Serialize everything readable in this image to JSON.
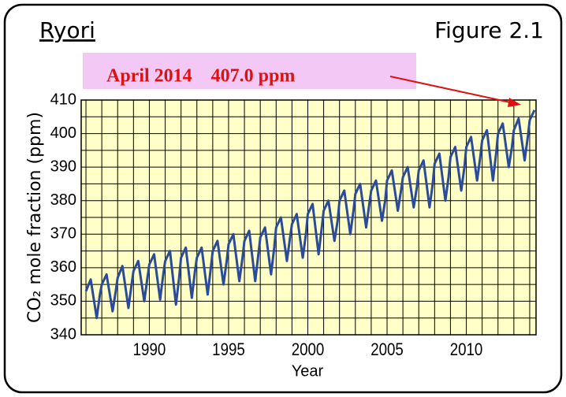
{
  "chart_data": {
    "type": "line",
    "title": "Ryori",
    "figure_label": "Figure 2.1",
    "annotation": "April 2014    407.0 ppm",
    "x_label": "Year",
    "y_label": "CO₂ mole fraction (ppm)",
    "xlim": [
      1985.7,
      2014.4
    ],
    "ylim": [
      340,
      410
    ],
    "xticks": [
      1990,
      1995,
      2000,
      2005,
      2010
    ],
    "yticks": [
      340,
      350,
      360,
      370,
      380,
      390,
      400,
      410
    ],
    "minor_xticks": [
      1986,
      1987,
      1988,
      1989,
      1991,
      1992,
      1993,
      1994,
      1996,
      1997,
      1998,
      1999,
      2001,
      2002,
      2003,
      2004,
      2006,
      2007,
      2008,
      2009,
      2011,
      2012,
      2013,
      2014
    ],
    "minor_yticks": [
      345,
      355,
      365,
      375,
      385,
      395,
      405
    ],
    "grid": true,
    "series": [
      {
        "name": "Ryori",
        "color": "#2a4a9a",
        "x": [
          1986.0,
          1986.3,
          1986.68,
          1986.88,
          1987.0,
          1987.3,
          1987.68,
          1987.88,
          1988.0,
          1988.3,
          1988.68,
          1988.88,
          1989.0,
          1989.3,
          1989.68,
          1989.88,
          1990.0,
          1990.3,
          1990.68,
          1990.88,
          1991.0,
          1991.3,
          1991.68,
          1991.88,
          1992.0,
          1992.3,
          1992.68,
          1992.88,
          1993.0,
          1993.3,
          1993.68,
          1993.88,
          1994.0,
          1994.3,
          1994.68,
          1994.88,
          1995.0,
          1995.3,
          1995.68,
          1995.88,
          1996.0,
          1996.3,
          1996.68,
          1996.88,
          1997.0,
          1997.3,
          1997.68,
          1997.88,
          1998.0,
          1998.3,
          1998.68,
          1998.88,
          1999.0,
          1999.3,
          1999.68,
          1999.88,
          2000.0,
          2000.3,
          2000.68,
          2000.88,
          2001.0,
          2001.3,
          2001.68,
          2001.88,
          2002.0,
          2002.3,
          2002.68,
          2002.88,
          2003.0,
          2003.3,
          2003.68,
          2003.88,
          2004.0,
          2004.3,
          2004.68,
          2004.88,
          2005.0,
          2005.3,
          2005.68,
          2005.88,
          2006.0,
          2006.3,
          2006.68,
          2006.88,
          2007.0,
          2007.3,
          2007.68,
          2007.88,
          2008.0,
          2008.3,
          2008.68,
          2008.88,
          2009.0,
          2009.3,
          2009.68,
          2009.88,
          2010.0,
          2010.3,
          2010.68,
          2010.88,
          2011.0,
          2011.3,
          2011.68,
          2011.88,
          2012.0,
          2012.3,
          2012.68,
          2012.88,
          2013.0,
          2013.3,
          2013.68,
          2013.88,
          2014.0,
          2014.3
        ],
        "values": [
          353,
          356.5,
          345,
          352,
          355,
          358,
          347,
          353,
          357,
          360.5,
          348,
          355,
          359,
          362,
          350,
          357,
          361,
          364,
          350.5,
          358,
          362,
          365,
          349,
          357,
          363,
          366,
          351,
          359,
          363,
          366,
          352,
          360,
          365,
          368,
          355,
          362,
          367,
          370,
          356,
          363,
          368,
          371,
          356,
          364,
          369,
          372,
          358,
          366,
          372,
          375,
          362,
          369,
          373,
          376,
          363,
          370,
          376,
          379,
          364,
          372,
          377,
          380,
          368,
          374,
          380,
          383,
          370,
          377,
          382,
          385,
          372,
          379,
          383,
          386,
          374,
          380,
          386,
          389,
          377,
          383,
          387,
          390,
          378,
          384,
          389,
          392,
          378,
          385,
          391,
          394,
          380,
          387,
          393,
          396,
          383,
          390,
          396,
          399,
          386,
          393,
          398,
          401,
          386,
          394,
          400,
          403,
          390,
          396,
          401,
          404.5,
          392,
          399,
          404,
          407
        ]
      }
    ]
  }
}
